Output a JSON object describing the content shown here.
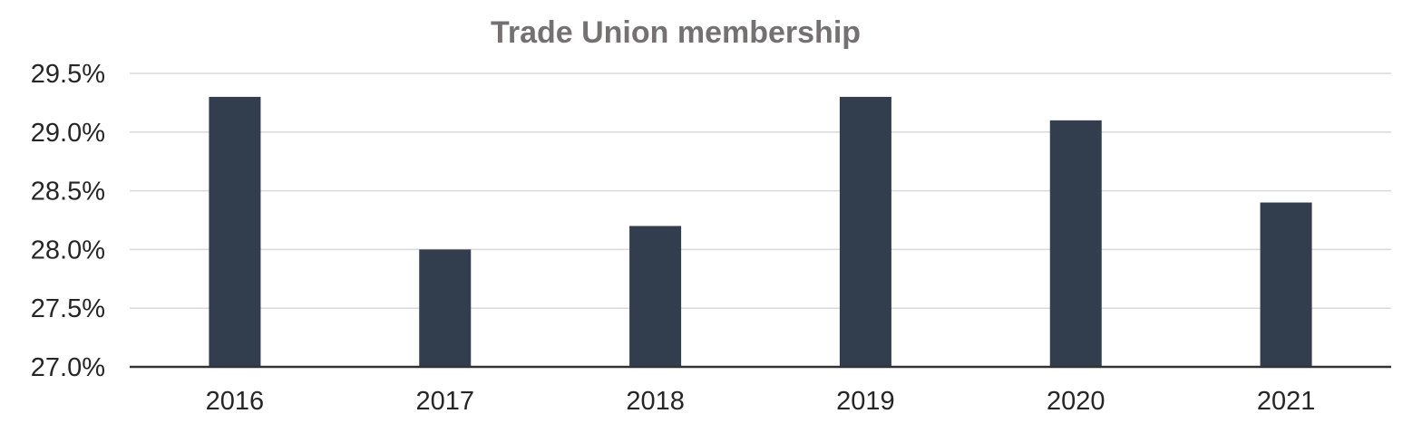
{
  "chart_data": {
    "type": "bar",
    "title": "Trade Union membership",
    "xlabel": "",
    "ylabel": "",
    "categories": [
      "2016",
      "2017",
      "2018",
      "2019",
      "2020",
      "2021"
    ],
    "values": [
      29.3,
      28.0,
      28.2,
      29.3,
      29.1,
      28.4
    ],
    "ylim": [
      27.0,
      29.5
    ],
    "yticks": [
      27.0,
      27.5,
      28.0,
      28.5,
      29.0,
      29.5
    ],
    "ytick_labels": [
      "27.0%",
      "27.5%",
      "28.0%",
      "28.5%",
      "29.0%",
      "29.5%"
    ],
    "grid": true,
    "legend": "none",
    "bar_color": "#323d4e"
  }
}
